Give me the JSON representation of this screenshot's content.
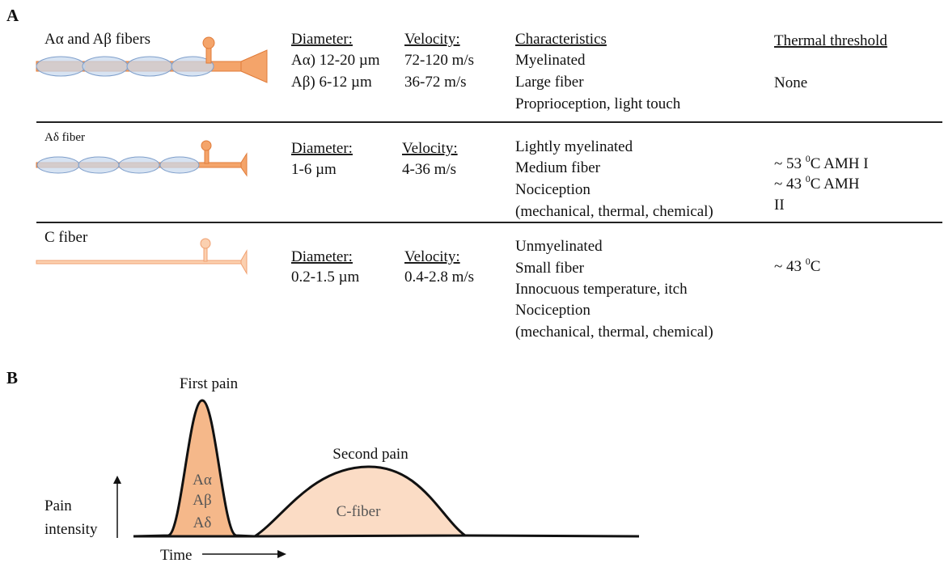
{
  "panels": {
    "a": "A",
    "b": "B"
  },
  "table": {
    "headers": {
      "characteristics": "Characteristics",
      "thermal": "Thermal threshold"
    },
    "rows": [
      {
        "fiber": "Aα and Aβ fibers",
        "diameter_label": "Diameter:",
        "diameter": [
          "Aα) 12-20 µm",
          "Aβ) 6-12 µm"
        ],
        "velocity_label": "Velocity:",
        "velocity": [
          "72-120 m/s",
          "36-72 m/s"
        ],
        "characteristics": [
          "Myelinated",
          "Large fiber",
          "Proprioception, light touch"
        ],
        "thermal": [
          "None"
        ]
      },
      {
        "fiber": "Aδ fiber",
        "diameter_label": "Diameter:",
        "diameter": [
          "1-6 µm"
        ],
        "velocity_label": "Velocity:",
        "velocity": [
          "4-36 m/s"
        ],
        "characteristics": [
          "Lightly myelinated",
          "Medium fiber",
          "Nociception",
          "(mechanical, thermal, chemical)"
        ],
        "thermal": [
          {
            "before": "~ 53 ",
            "sup": "0",
            "after": "C AMH I"
          },
          {
            "before": "~ 43 ",
            "sup": "0",
            "after": "C AMH"
          },
          "II"
        ]
      },
      {
        "fiber": "C fiber",
        "diameter_label": "Diameter:",
        "diameter": [
          "0.2-1.5 µm"
        ],
        "velocity_label": "Velocity:",
        "velocity": [
          "0.4-2.8 m/s"
        ],
        "characteristics": [
          "Unmyelinated",
          "Small fiber",
          "Innocuous temperature, itch",
          "Nociception",
          "(mechanical, thermal, chemical)"
        ],
        "thermal": [
          {
            "before": "~ 43 ",
            "sup": "0",
            "after": "C"
          }
        ]
      }
    ]
  },
  "graph": {
    "first_pain": "First pain",
    "second_pain": "Second pain",
    "a_fibers": [
      "Aα",
      "Aβ",
      "Aδ"
    ],
    "c_fiber": "C-fiber",
    "y_label": [
      "Pain",
      "intensity"
    ],
    "x_label": "Time"
  }
}
